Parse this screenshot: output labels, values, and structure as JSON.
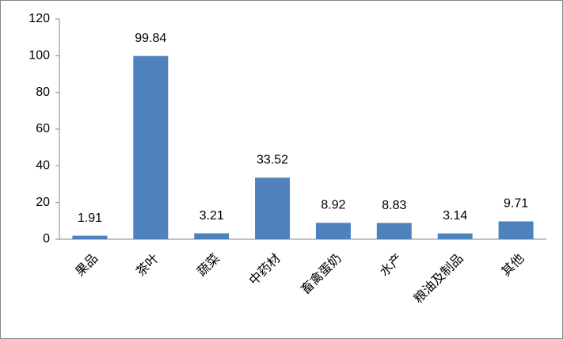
{
  "chart_data": {
    "type": "bar",
    "categories": [
      "果品",
      "茶叶",
      "蔬菜",
      "中药材",
      "畜禽蛋奶",
      "水产",
      "粮油及制品",
      "其他"
    ],
    "values": [
      1.91,
      99.84,
      3.21,
      33.52,
      8.92,
      8.83,
      3.14,
      9.71
    ],
    "color": "#4f81bd",
    "ylim": [
      0,
      120
    ],
    "yticks": [
      0,
      20,
      40,
      60,
      80,
      100,
      120
    ],
    "grid": false
  }
}
